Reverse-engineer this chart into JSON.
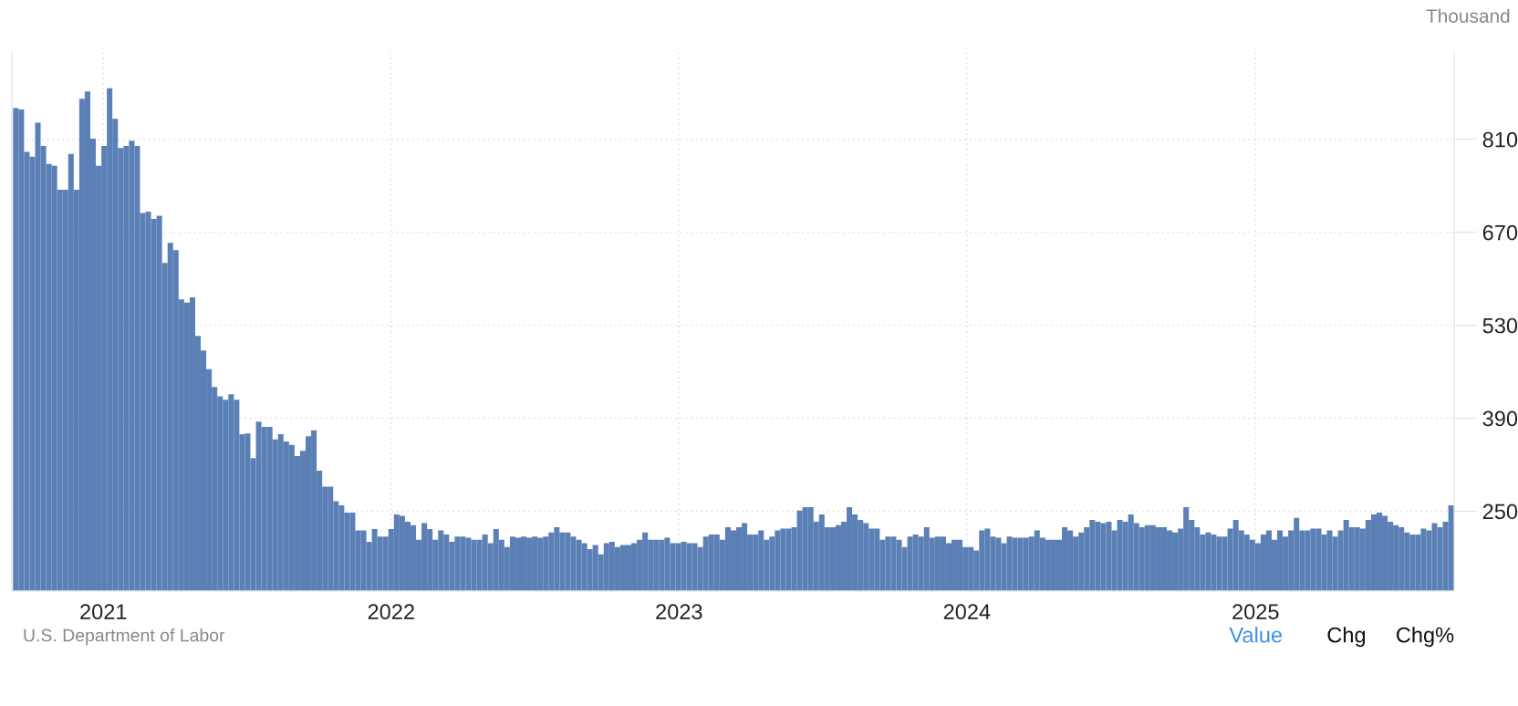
{
  "chart_data": {
    "type": "bar",
    "ylabel": "Thousand",
    "annotations": [
      "U.S. Department of Labor",
      "Value",
      "Chg",
      "Chg%"
    ],
    "color": "#5b80b6",
    "grid": true,
    "ylim": [
      130,
      940
    ],
    "yticks": [
      250,
      390,
      530,
      670,
      810
    ],
    "xlim": [
      "2020-09-07",
      "2025-09-10"
    ],
    "xticks": [
      {
        "value": "2021-01-01",
        "label": "2021"
      },
      {
        "value": "2022-01-01",
        "label": "2022"
      },
      {
        "value": "2023-01-01",
        "label": "2023"
      },
      {
        "value": "2024-01-01",
        "label": "2024"
      },
      {
        "value": "2025-01-01",
        "label": "2025"
      }
    ],
    "x": [
      "2020-09-12",
      "2020-09-19",
      "2020-09-26",
      "2020-10-03",
      "2020-10-10",
      "2020-10-17",
      "2020-10-24",
      "2020-10-31",
      "2020-11-07",
      "2020-11-14",
      "2020-11-21",
      "2020-11-28",
      "2020-12-05",
      "2020-12-12",
      "2020-12-19",
      "2020-12-26",
      "2021-01-02",
      "2021-01-09",
      "2021-01-16",
      "2021-01-23",
      "2021-01-30",
      "2021-02-06",
      "2021-02-13",
      "2021-02-20",
      "2021-02-27",
      "2021-03-06",
      "2021-03-13",
      "2021-03-20",
      "2021-03-27",
      "2021-04-03",
      "2021-04-10",
      "2021-04-17",
      "2021-04-24",
      "2021-05-01",
      "2021-05-08",
      "2021-05-15",
      "2021-05-22",
      "2021-05-29",
      "2021-06-05",
      "2021-06-12",
      "2021-06-19",
      "2021-06-26",
      "2021-07-03",
      "2021-07-10",
      "2021-07-17",
      "2021-07-24",
      "2021-07-31",
      "2021-08-07",
      "2021-08-14",
      "2021-08-21",
      "2021-08-28",
      "2021-09-04",
      "2021-09-11",
      "2021-09-18",
      "2021-09-25",
      "2021-10-02",
      "2021-10-09",
      "2021-10-16",
      "2021-10-23",
      "2021-10-30",
      "2021-11-06",
      "2021-11-13",
      "2021-11-20",
      "2021-11-27",
      "2021-12-04",
      "2021-12-11",
      "2021-12-18",
      "2021-12-25",
      "2022-01-01",
      "2022-01-08",
      "2022-01-15",
      "2022-01-22",
      "2022-01-29",
      "2022-02-05",
      "2022-02-12",
      "2022-02-19",
      "2022-02-26",
      "2022-03-05",
      "2022-03-12",
      "2022-03-19",
      "2022-03-26",
      "2022-04-02",
      "2022-04-09",
      "2022-04-16",
      "2022-04-23",
      "2022-04-30",
      "2022-05-07",
      "2022-05-14",
      "2022-05-21",
      "2022-05-28",
      "2022-06-04",
      "2022-06-11",
      "2022-06-18",
      "2022-06-25",
      "2022-07-02",
      "2022-07-09",
      "2022-07-16",
      "2022-07-23",
      "2022-07-30",
      "2022-08-06",
      "2022-08-13",
      "2022-08-20",
      "2022-08-27",
      "2022-09-03",
      "2022-09-10",
      "2022-09-17",
      "2022-09-24",
      "2022-10-01",
      "2022-10-08",
      "2022-10-15",
      "2022-10-22",
      "2022-10-29",
      "2022-11-05",
      "2022-11-12",
      "2022-11-19",
      "2022-11-26",
      "2022-12-03",
      "2022-12-10",
      "2022-12-17",
      "2022-12-24",
      "2022-12-31",
      "2023-01-07",
      "2023-01-14",
      "2023-01-21",
      "2023-01-28",
      "2023-02-04",
      "2023-02-11",
      "2023-02-18",
      "2023-02-25",
      "2023-03-04",
      "2023-03-11",
      "2023-03-18",
      "2023-03-25",
      "2023-04-01",
      "2023-04-08",
      "2023-04-15",
      "2023-04-22",
      "2023-04-29",
      "2023-05-06",
      "2023-05-13",
      "2023-05-20",
      "2023-05-27",
      "2023-06-03",
      "2023-06-10",
      "2023-06-17",
      "2023-06-24",
      "2023-07-01",
      "2023-07-08",
      "2023-07-15",
      "2023-07-22",
      "2023-07-29",
      "2023-08-05",
      "2023-08-12",
      "2023-08-19",
      "2023-08-26",
      "2023-09-02",
      "2023-09-09",
      "2023-09-16",
      "2023-09-23",
      "2023-09-30",
      "2023-10-07",
      "2023-10-14",
      "2023-10-21",
      "2023-10-28",
      "2023-11-04",
      "2023-11-11",
      "2023-11-18",
      "2023-11-25",
      "2023-12-02",
      "2023-12-09",
      "2023-12-16",
      "2023-12-23",
      "2023-12-30",
      "2024-01-06",
      "2024-01-13",
      "2024-01-20",
      "2024-01-27",
      "2024-02-03",
      "2024-02-10",
      "2024-02-17",
      "2024-02-24",
      "2024-03-02",
      "2024-03-09",
      "2024-03-16",
      "2024-03-23",
      "2024-03-30",
      "2024-04-06",
      "2024-04-13",
      "2024-04-20",
      "2024-04-27",
      "2024-05-04",
      "2024-05-11",
      "2024-05-18",
      "2024-05-25",
      "2024-06-01",
      "2024-06-08",
      "2024-06-15",
      "2024-06-22",
      "2024-06-29",
      "2024-07-06",
      "2024-07-13",
      "2024-07-20",
      "2024-07-27",
      "2024-08-03",
      "2024-08-10",
      "2024-08-17",
      "2024-08-24",
      "2024-08-31",
      "2024-09-07",
      "2024-09-14",
      "2024-09-21",
      "2024-09-28",
      "2024-10-05",
      "2024-10-12",
      "2024-10-19",
      "2024-10-26",
      "2024-11-02",
      "2024-11-09",
      "2024-11-16",
      "2024-11-23",
      "2024-11-30",
      "2024-12-07",
      "2024-12-14",
      "2024-12-21",
      "2024-12-28",
      "2025-01-04",
      "2025-01-11",
      "2025-01-18",
      "2025-01-25",
      "2025-02-01",
      "2025-02-08",
      "2025-02-15",
      "2025-02-22",
      "2025-03-01",
      "2025-03-08",
      "2025-03-15",
      "2025-03-22",
      "2025-03-29",
      "2025-04-05",
      "2025-04-12",
      "2025-04-19",
      "2025-04-26",
      "2025-05-03",
      "2025-05-10",
      "2025-05-17",
      "2025-05-24",
      "2025-05-31",
      "2025-06-07",
      "2025-06-14",
      "2025-06-21",
      "2025-06-28",
      "2025-07-05",
      "2025-07-12",
      "2025-07-19",
      "2025-07-26",
      "2025-08-02",
      "2025-08-09",
      "2025-08-16",
      "2025-08-23",
      "2025-08-30",
      "2025-09-06"
    ],
    "values": [
      857,
      855,
      791,
      784,
      835,
      800,
      773,
      770,
      734,
      734,
      788,
      734,
      871,
      882,
      811,
      770,
      800,
      887,
      841,
      797,
      800,
      808,
      800,
      699,
      701,
      690,
      695,
      624,
      654,
      643,
      569,
      564,
      572,
      514,
      492,
      464,
      437,
      423,
      418,
      426,
      418,
      366,
      367,
      330,
      385,
      377,
      377,
      358,
      366,
      355,
      350,
      333,
      341,
      363,
      372,
      311,
      287,
      287,
      265,
      259,
      248,
      248,
      221,
      221,
      204,
      223,
      212,
      212,
      223,
      245,
      243,
      234,
      229,
      207,
      232,
      223,
      207,
      221,
      215,
      204,
      212,
      212,
      210,
      207,
      207,
      215,
      202,
      223,
      207,
      196,
      212,
      210,
      212,
      210,
      212,
      210,
      212,
      218,
      226,
      218,
      218,
      212,
      207,
      202,
      193,
      199,
      185,
      202,
      204,
      196,
      199,
      199,
      202,
      207,
      218,
      207,
      207,
      207,
      210,
      202,
      202,
      204,
      202,
      202,
      196,
      212,
      215,
      215,
      207,
      226,
      221,
      226,
      232,
      215,
      215,
      221,
      207,
      212,
      221,
      224,
      224,
      226,
      251,
      256,
      256,
      234,
      245,
      226,
      226,
      229,
      234,
      256,
      245,
      237,
      232,
      224,
      224,
      207,
      212,
      212,
      207,
      196,
      212,
      215,
      212,
      226,
      210,
      212,
      212,
      202,
      207,
      207,
      196,
      196,
      191,
      221,
      224,
      212,
      210,
      202,
      212,
      210,
      210,
      210,
      212,
      221,
      210,
      207,
      207,
      207,
      226,
      221,
      212,
      218,
      226,
      237,
      234,
      232,
      234,
      221,
      237,
      234,
      245,
      232,
      226,
      229,
      229,
      226,
      226,
      221,
      218,
      224,
      256,
      237,
      226,
      215,
      218,
      215,
      212,
      212,
      224,
      237,
      221,
      215,
      207,
      202,
      215,
      221,
      207,
      221,
      212,
      221,
      240,
      221,
      221,
      224,
      224,
      215,
      221,
      212,
      221,
      237,
      226,
      226,
      224,
      237,
      245,
      248,
      243,
      234,
      229,
      226,
      218,
      215,
      215,
      224,
      221,
      232,
      226,
      234,
      259
    ]
  }
}
